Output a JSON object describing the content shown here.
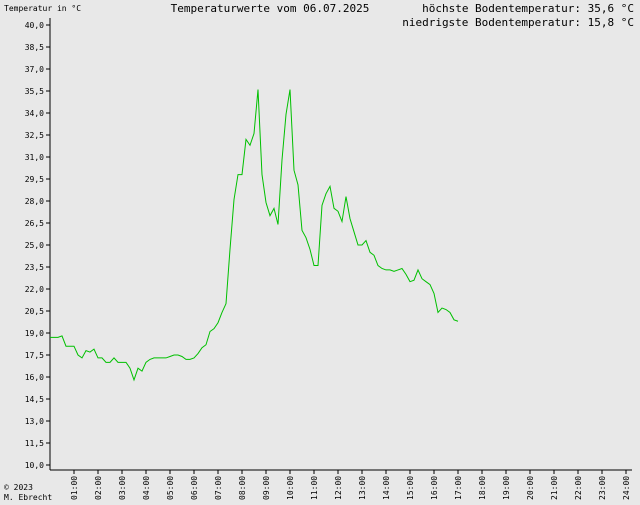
{
  "chart_data": {
    "type": "line",
    "title": "Temperaturwerte vom 06.07.2025",
    "y_label": "Temperatur in °C",
    "annotations": [
      "höchste Bodentemperatur: 35,6 °C",
      "niedrigste Bodentemperatur: 15,8 °C"
    ],
    "footer": [
      "© 2023",
      "M. Ebrecht"
    ],
    "color": "#00c000",
    "x": [
      0,
      10,
      20,
      30,
      40,
      50,
      60,
      70,
      80,
      90,
      100,
      110,
      120,
      130,
      140,
      150,
      160,
      170,
      180,
      190,
      200,
      210,
      220,
      230,
      240,
      250,
      260,
      270,
      280,
      290,
      300,
      310,
      320,
      330,
      340,
      350,
      360,
      370,
      380,
      390,
      400,
      410,
      420,
      430,
      440,
      450,
      460,
      470,
      480,
      490,
      500,
      510,
      520,
      530,
      540,
      550,
      560,
      570,
      580,
      590,
      600,
      610,
      620,
      630,
      640,
      650,
      660,
      670,
      680,
      690,
      700,
      710,
      720,
      730,
      740,
      750,
      760,
      770,
      780,
      790,
      800,
      810,
      820,
      830,
      840,
      850,
      860,
      870,
      880,
      890,
      900,
      910,
      920,
      930,
      940,
      950,
      960,
      970,
      980,
      990,
      1000,
      1010,
      1020
    ],
    "values": [
      18.7,
      18.7,
      18.7,
      18.8,
      18.1,
      18.1,
      18.1,
      17.5,
      17.3,
      17.8,
      17.7,
      17.9,
      17.3,
      17.3,
      17.0,
      17.0,
      17.3,
      17.0,
      17.0,
      17.0,
      16.6,
      15.8,
      16.6,
      16.4,
      17.0,
      17.2,
      17.3,
      17.3,
      17.3,
      17.3,
      17.4,
      17.5,
      17.5,
      17.4,
      17.2,
      17.2,
      17.3,
      17.6,
      18.0,
      18.2,
      19.1,
      19.3,
      19.7,
      20.4,
      21.0,
      24.7,
      28.1,
      29.8,
      29.8,
      32.2,
      31.8,
      32.6,
      35.6,
      29.8,
      27.9,
      27.0,
      27.5,
      26.4,
      30.8,
      33.9,
      35.6,
      30.1,
      29.1,
      26.0,
      25.5,
      24.7,
      23.6,
      23.6,
      27.7,
      28.5,
      29.0,
      27.5,
      27.3,
      26.6,
      28.3,
      26.8,
      25.9,
      25.0,
      25.0,
      25.3,
      24.5,
      24.3,
      23.6,
      23.4,
      23.3,
      23.3,
      23.2,
      23.3,
      23.4,
      23.0,
      22.5,
      22.6,
      23.3,
      22.7,
      22.5,
      22.3,
      21.7,
      20.4,
      20.7,
      20.6,
      20.4,
      19.9,
      19.8
    ],
    "xlim": [
      0,
      1440
    ],
    "xticks": [
      {
        "value": 60,
        "label": "01:00"
      },
      {
        "value": 120,
        "label": "02:00"
      },
      {
        "value": 180,
        "label": "03:00"
      },
      {
        "value": 240,
        "label": "04:00"
      },
      {
        "value": 300,
        "label": "05:00"
      },
      {
        "value": 360,
        "label": "06:00"
      },
      {
        "value": 420,
        "label": "07:00"
      },
      {
        "value": 480,
        "label": "08:00"
      },
      {
        "value": 540,
        "label": "09:00"
      },
      {
        "value": 600,
        "label": "10:00"
      },
      {
        "value": 660,
        "label": "11:00"
      },
      {
        "value": 720,
        "label": "12:00"
      },
      {
        "value": 780,
        "label": "13:00"
      },
      {
        "value": 840,
        "label": "14:00"
      },
      {
        "value": 900,
        "label": "15:00"
      },
      {
        "value": 960,
        "label": "16:00"
      },
      {
        "value": 1020,
        "label": "17:00"
      },
      {
        "value": 1080,
        "label": "18:00"
      },
      {
        "value": 1140,
        "label": "19:00"
      },
      {
        "value": 1200,
        "label": "20:00"
      },
      {
        "value": 1260,
        "label": "21:00"
      },
      {
        "value": 1320,
        "label": "22:00"
      },
      {
        "value": 1380,
        "label": "23:00"
      },
      {
        "value": 1440,
        "label": "24:00"
      }
    ],
    "ylim": [
      10,
      40
    ],
    "yticks": [
      {
        "value": 40,
        "label": "40,0"
      },
      {
        "value": 38.5,
        "label": "38,5"
      },
      {
        "value": 37,
        "label": "37,0"
      },
      {
        "value": 35.5,
        "label": "35,5"
      },
      {
        "value": 34,
        "label": "34,0"
      },
      {
        "value": 32.5,
        "label": "32,5"
      },
      {
        "value": 31,
        "label": "31,0"
      },
      {
        "value": 29.5,
        "label": "29,5"
      },
      {
        "value": 28,
        "label": "28,0"
      },
      {
        "value": 26.5,
        "label": "26,5"
      },
      {
        "value": 25,
        "label": "25,0"
      },
      {
        "value": 23.5,
        "label": "23,5"
      },
      {
        "value": 22,
        "label": "22,0"
      },
      {
        "value": 20.5,
        "label": "20,5"
      },
      {
        "value": 19,
        "label": "19,0"
      },
      {
        "value": 17.5,
        "label": "17,5"
      },
      {
        "value": 16,
        "label": "16,0"
      },
      {
        "value": 14.5,
        "label": "14,5"
      },
      {
        "value": 13,
        "label": "13,0"
      },
      {
        "value": 11.5,
        "label": "11,5"
      },
      {
        "value": 10,
        "label": "10,0"
      }
    ]
  }
}
